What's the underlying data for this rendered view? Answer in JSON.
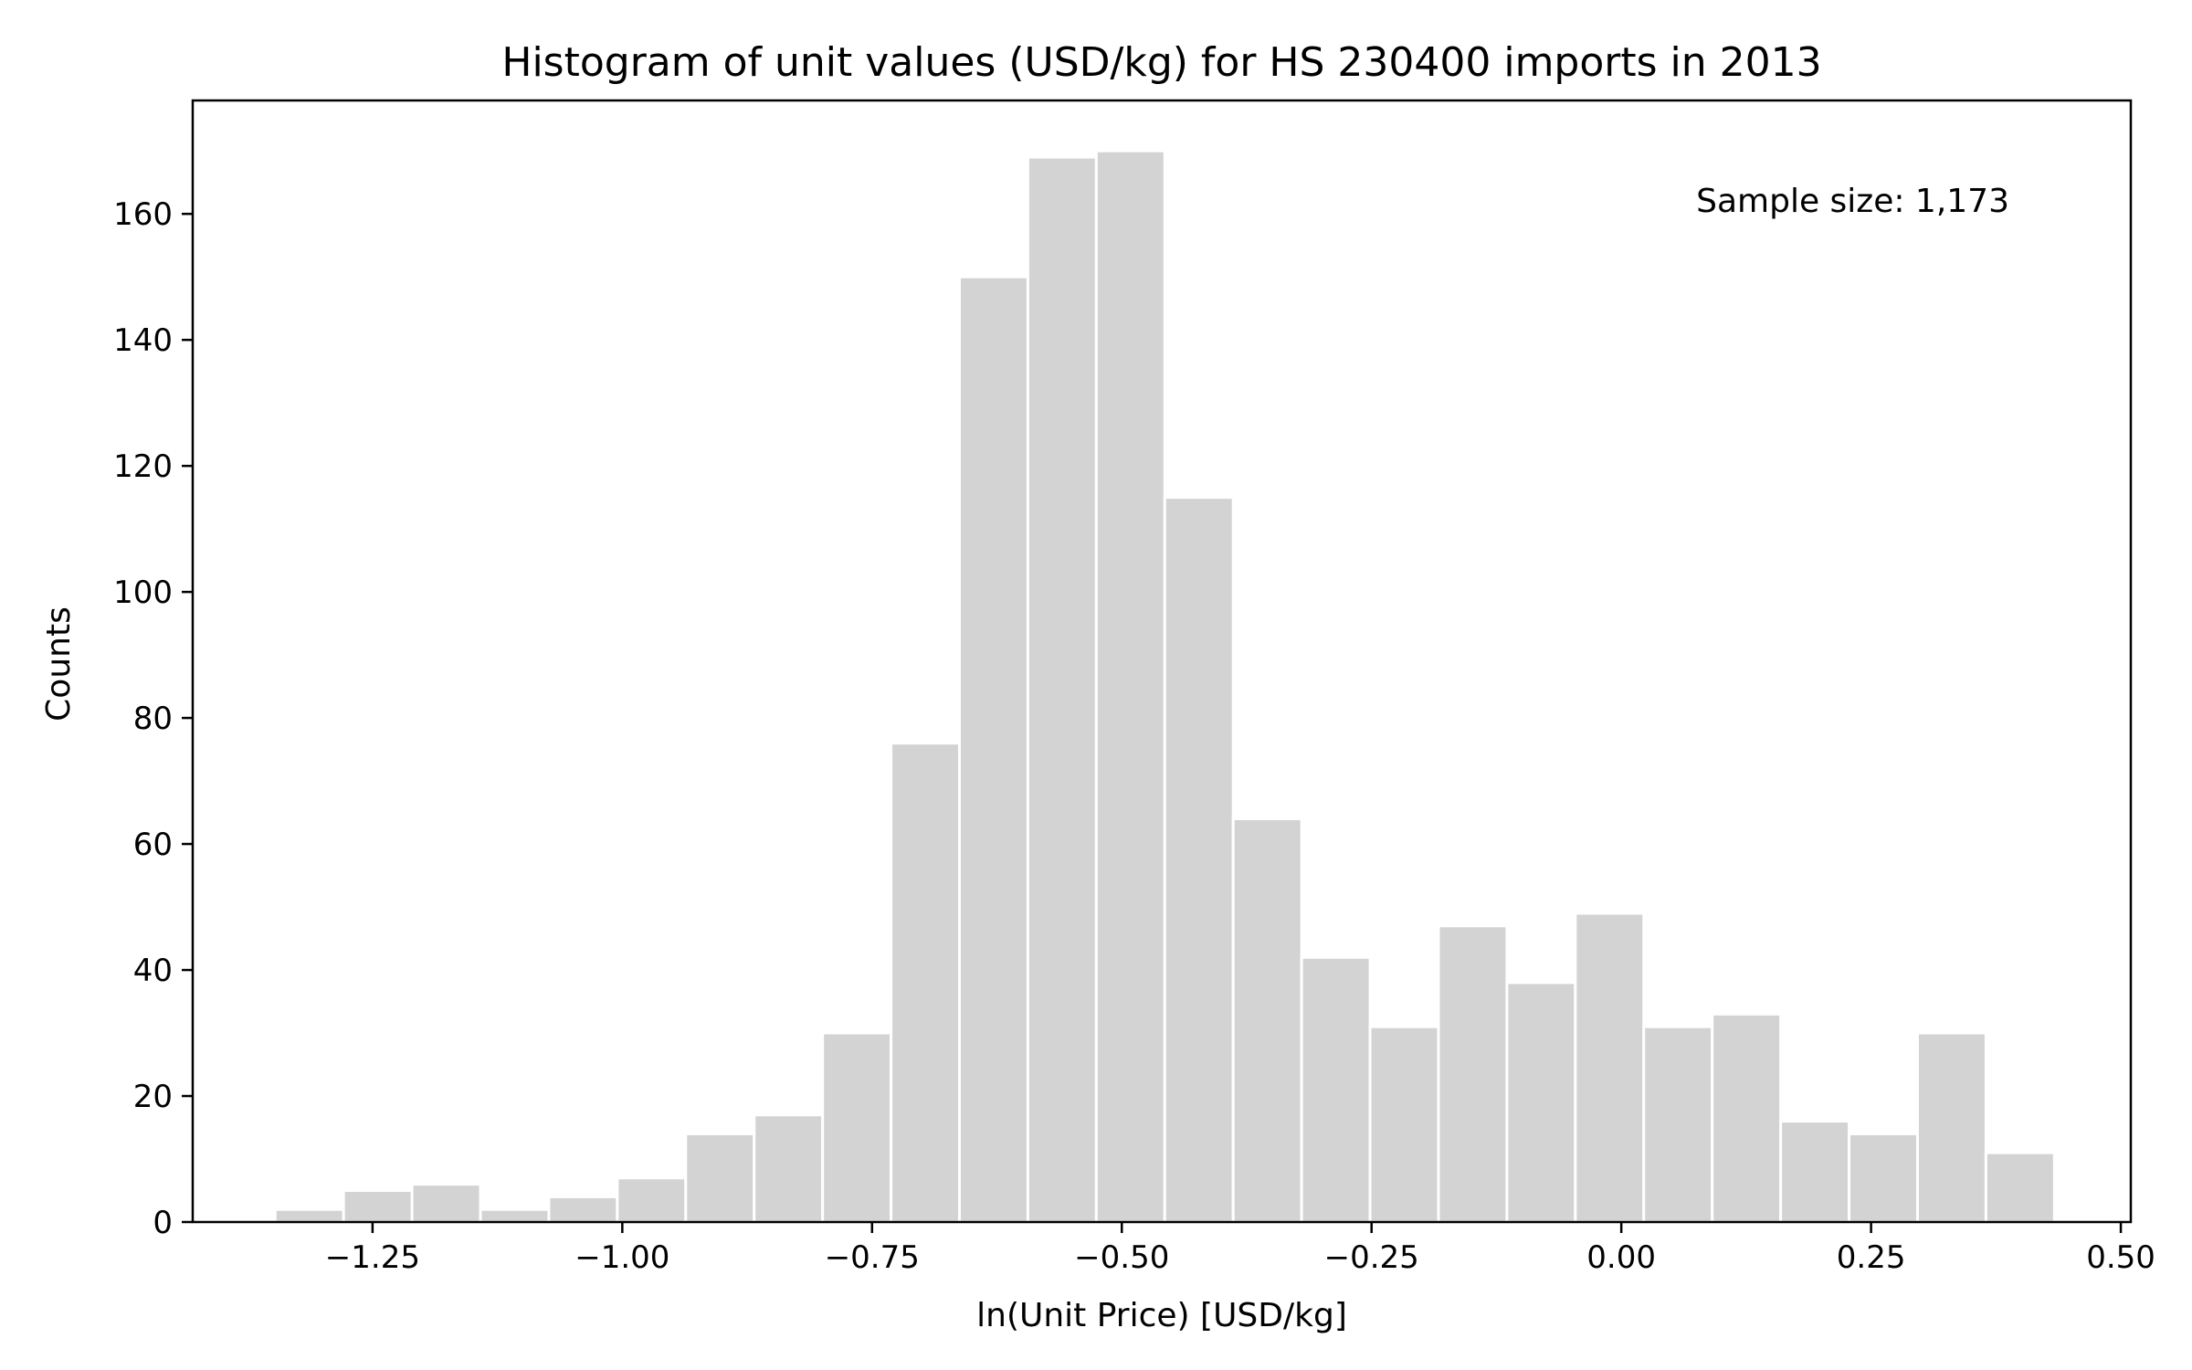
{
  "chart_data": {
    "type": "bar",
    "subtype": "histogram",
    "title": "Histogram of unit values (USD/kg) for HS 230400 imports in 2013",
    "xlabel": "ln(Unit Price) [USD/kg]",
    "ylabel": "Counts",
    "annotation": "Sample size: 1,173",
    "xlim": [
      -1.43,
      0.51
    ],
    "ylim": [
      0,
      178
    ],
    "xticks": [
      {
        "value": -1.25,
        "label": "−1.25"
      },
      {
        "value": -1.0,
        "label": "−1.00"
      },
      {
        "value": -0.75,
        "label": "−0.75"
      },
      {
        "value": -0.5,
        "label": "−0.50"
      },
      {
        "value": -0.25,
        "label": "−0.25"
      },
      {
        "value": 0.0,
        "label": "0.00"
      },
      {
        "value": 0.25,
        "label": "0.25"
      },
      {
        "value": 0.5,
        "label": "0.50"
      }
    ],
    "yticks": [
      {
        "value": 0,
        "label": "0"
      },
      {
        "value": 20,
        "label": "20"
      },
      {
        "value": 40,
        "label": "40"
      },
      {
        "value": 60,
        "label": "60"
      },
      {
        "value": 80,
        "label": "80"
      },
      {
        "value": 100,
        "label": "100"
      },
      {
        "value": 120,
        "label": "120"
      },
      {
        "value": 140,
        "label": "140"
      },
      {
        "value": 160,
        "label": "160"
      }
    ],
    "bins": [
      {
        "start": -1.3475,
        "end": -1.279,
        "count": 2
      },
      {
        "start": -1.279,
        "end": -1.2105,
        "count": 5
      },
      {
        "start": -1.2105,
        "end": -1.142,
        "count": 6
      },
      {
        "start": -1.142,
        "end": -1.0735,
        "count": 2
      },
      {
        "start": -1.0735,
        "end": -1.005,
        "count": 4
      },
      {
        "start": -1.005,
        "end": -0.9365,
        "count": 7
      },
      {
        "start": -0.9365,
        "end": -0.868,
        "count": 14
      },
      {
        "start": -0.868,
        "end": -0.7995,
        "count": 17
      },
      {
        "start": -0.7995,
        "end": -0.731,
        "count": 30
      },
      {
        "start": -0.731,
        "end": -0.6625,
        "count": 76
      },
      {
        "start": -0.6625,
        "end": -0.594,
        "count": 150
      },
      {
        "start": -0.594,
        "end": -0.5255,
        "count": 169
      },
      {
        "start": -0.5255,
        "end": -0.457,
        "count": 170
      },
      {
        "start": -0.457,
        "end": -0.3885,
        "count": 115
      },
      {
        "start": -0.3885,
        "end": -0.32,
        "count": 64
      },
      {
        "start": -0.32,
        "end": -0.2515,
        "count": 42
      },
      {
        "start": -0.2515,
        "end": -0.183,
        "count": 31
      },
      {
        "start": -0.183,
        "end": -0.1145,
        "count": 47
      },
      {
        "start": -0.1145,
        "end": -0.046,
        "count": 38
      },
      {
        "start": -0.046,
        "end": 0.0225,
        "count": 49
      },
      {
        "start": 0.0225,
        "end": 0.091,
        "count": 31
      },
      {
        "start": 0.091,
        "end": 0.1595,
        "count": 33
      },
      {
        "start": 0.1595,
        "end": 0.228,
        "count": 16
      },
      {
        "start": 0.228,
        "end": 0.2965,
        "count": 14
      },
      {
        "start": 0.2965,
        "end": 0.365,
        "count": 30
      },
      {
        "start": 0.365,
        "end": 0.4335,
        "count": 11
      }
    ],
    "colors": {
      "bar": "#d3d3d3",
      "bar_edge": "#ffffff"
    },
    "grid": false,
    "legend": "none"
  }
}
